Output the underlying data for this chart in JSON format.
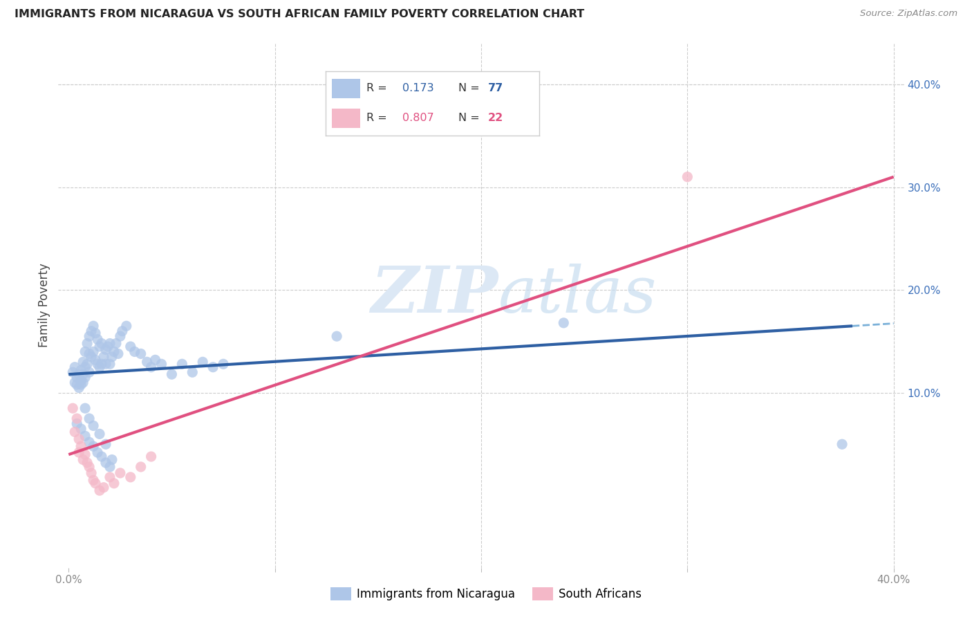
{
  "title": "IMMIGRANTS FROM NICARAGUA VS SOUTH AFRICAN FAMILY POVERTY CORRELATION CHART",
  "source": "Source: ZipAtlas.com",
  "ylabel": "Family Poverty",
  "xlim": [
    -0.005,
    0.405
  ],
  "ylim": [
    -0.07,
    0.44
  ],
  "nicaragua_R": 0.173,
  "nicaragua_N": 77,
  "southafrica_R": 0.807,
  "southafrica_N": 22,
  "nicaragua_color": "#aec6e8",
  "southafrica_color": "#f4b8c8",
  "nicaragua_line_color": "#2e5fa3",
  "southafrica_line_color": "#e05080",
  "dashed_line_color": "#7ab0d8",
  "watermark": "ZIPatlas",
  "grid_color": "#cccccc",
  "nic_line_x0": 0.0,
  "nic_line_y0": 0.118,
  "nic_line_x1": 0.38,
  "nic_line_y1": 0.165,
  "sa_line_x0": 0.0,
  "sa_line_y0": 0.04,
  "sa_line_x1": 0.4,
  "sa_line_y1": 0.31,
  "nic_scatter_x": [
    0.002,
    0.003,
    0.003,
    0.004,
    0.004,
    0.005,
    0.005,
    0.006,
    0.006,
    0.006,
    0.007,
    0.007,
    0.007,
    0.008,
    0.008,
    0.008,
    0.009,
    0.009,
    0.01,
    0.01,
    0.01,
    0.011,
    0.011,
    0.012,
    0.012,
    0.013,
    0.013,
    0.014,
    0.014,
    0.015,
    0.015,
    0.016,
    0.016,
    0.017,
    0.018,
    0.018,
    0.019,
    0.02,
    0.02,
    0.021,
    0.022,
    0.023,
    0.024,
    0.025,
    0.026,
    0.028,
    0.03,
    0.032,
    0.035,
    0.038,
    0.04,
    0.042,
    0.045,
    0.05,
    0.055,
    0.06,
    0.065,
    0.07,
    0.075,
    0.004,
    0.006,
    0.008,
    0.01,
    0.012,
    0.014,
    0.016,
    0.018,
    0.02,
    0.008,
    0.01,
    0.012,
    0.015,
    0.018,
    0.021,
    0.24,
    0.13,
    0.375
  ],
  "nic_scatter_y": [
    0.12,
    0.125,
    0.11,
    0.115,
    0.108,
    0.118,
    0.105,
    0.122,
    0.112,
    0.108,
    0.13,
    0.118,
    0.11,
    0.14,
    0.125,
    0.115,
    0.148,
    0.128,
    0.155,
    0.138,
    0.12,
    0.16,
    0.135,
    0.165,
    0.14,
    0.158,
    0.132,
    0.152,
    0.128,
    0.145,
    0.125,
    0.148,
    0.128,
    0.135,
    0.142,
    0.128,
    0.145,
    0.148,
    0.128,
    0.135,
    0.14,
    0.148,
    0.138,
    0.155,
    0.16,
    0.165,
    0.145,
    0.14,
    0.138,
    0.13,
    0.125,
    0.132,
    0.128,
    0.118,
    0.128,
    0.12,
    0.13,
    0.125,
    0.128,
    0.07,
    0.065,
    0.058,
    0.052,
    0.048,
    0.042,
    0.038,
    0.032,
    0.028,
    0.085,
    0.075,
    0.068,
    0.06,
    0.05,
    0.035,
    0.168,
    0.155,
    0.05
  ],
  "sa_scatter_x": [
    0.002,
    0.003,
    0.004,
    0.005,
    0.005,
    0.006,
    0.007,
    0.008,
    0.009,
    0.01,
    0.011,
    0.012,
    0.013,
    0.015,
    0.017,
    0.02,
    0.022,
    0.025,
    0.03,
    0.035,
    0.04,
    0.3
  ],
  "sa_scatter_y": [
    0.085,
    0.062,
    0.075,
    0.055,
    0.042,
    0.048,
    0.035,
    0.04,
    0.032,
    0.028,
    0.022,
    0.015,
    0.012,
    0.005,
    0.008,
    0.018,
    0.012,
    0.022,
    0.018,
    0.028,
    0.038,
    0.31
  ]
}
